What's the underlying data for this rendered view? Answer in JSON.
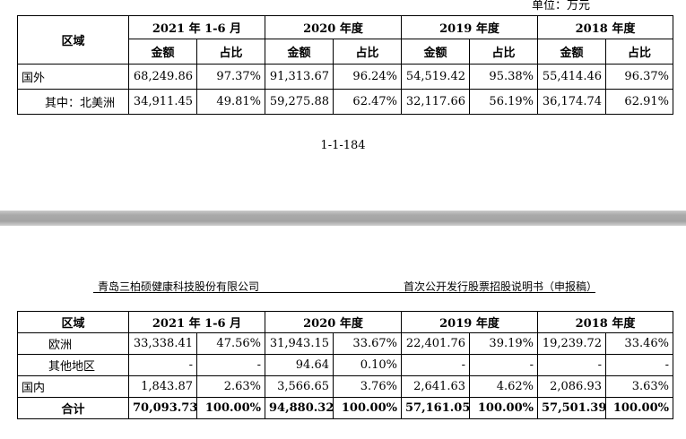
{
  "unit_label": "单位：万元",
  "top_table": {
    "region_header": "区域",
    "periods": [
      "2021 年 1-6 月",
      "2020 年度",
      "2019 年度",
      "2018 年度"
    ],
    "sub_headers": {
      "amount": "金额",
      "ratio": "占比"
    },
    "rows": [
      {
        "label": "国外",
        "values": [
          "68,249.86",
          "97.37%",
          "91,313.67",
          "96.24%",
          "54,519.42",
          "95.38%",
          "55,414.46",
          "96.37%"
        ]
      },
      {
        "label": "其中：北美洲",
        "values": [
          "34,911.45",
          "49.81%",
          "59,275.88",
          "62.47%",
          "32,117.66",
          "56.19%",
          "36,174.74",
          "62.91%"
        ]
      }
    ]
  },
  "page_number": "1-1-184",
  "page_header": {
    "company": "青岛三柏硕健康科技股份有限公司",
    "document": "首次公开发行股票招股说明书（申报稿）"
  },
  "bottom_table": {
    "region_header": "区域",
    "periods": [
      "2021 年 1-6 月",
      "2020 年度",
      "2019 年度",
      "2018 年度"
    ],
    "rows": [
      {
        "label": "欧洲",
        "values": [
          "33,338.41",
          "47.56%",
          "31,943.15",
          "33.67%",
          "22,401.76",
          "39.19%",
          "19,239.72",
          "33.46%"
        ]
      },
      {
        "label": "其他地区",
        "values": [
          "-",
          "-",
          "94.64",
          "0.10%",
          "-",
          "-",
          "-",
          "-"
        ]
      },
      {
        "label": "国内",
        "values": [
          "1,843.87",
          "2.63%",
          "3,566.65",
          "3.76%",
          "2,641.63",
          "4.62%",
          "2,086.93",
          "3.63%"
        ]
      },
      {
        "label": "合计",
        "values": [
          "70,093.73",
          "100.00%",
          "94,880.32",
          "100.00%",
          "57,161.05",
          "100.00%",
          "57,501.39",
          "100.00%"
        ]
      }
    ]
  }
}
